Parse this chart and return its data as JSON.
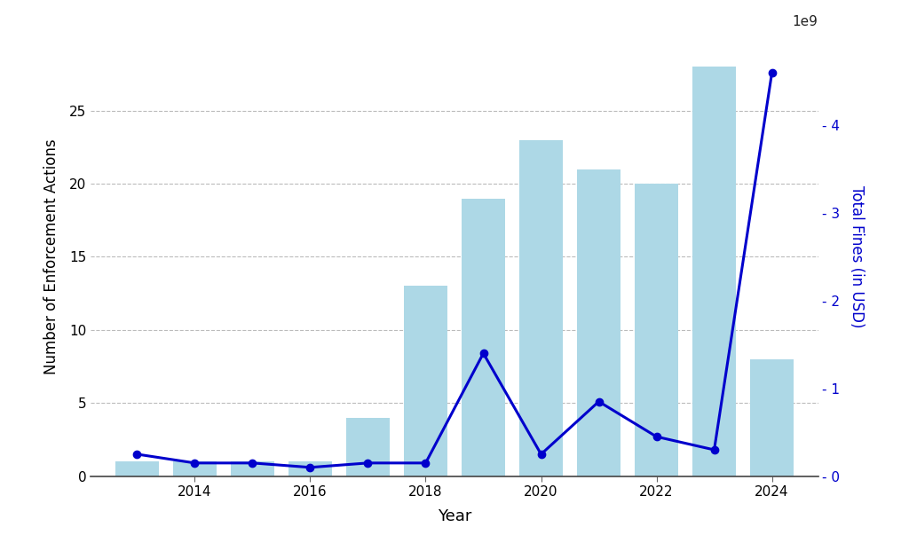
{
  "years": [
    2013,
    2014,
    2015,
    2016,
    2017,
    2018,
    2019,
    2020,
    2021,
    2022,
    2023,
    2024
  ],
  "enforcement_actions": [
    1,
    1,
    1,
    1,
    4,
    13,
    19,
    23,
    21,
    20,
    28,
    8
  ],
  "total_fines_usd": [
    250000000,
    150000000,
    150000000,
    100000000,
    150000000,
    150000000,
    1400000000,
    250000000,
    850000000,
    450000000,
    300000000,
    4600000000
  ],
  "bar_color": "#add8e6",
  "line_color": "#0000cc",
  "background_color": "#ffffff",
  "ylabel_left": "Number of Enforcement Actions",
  "ylabel_right": "Total Fines (in USD)",
  "xlabel": "Year",
  "grid_color": "#bbbbbb",
  "ylim_left": [
    0,
    30
  ],
  "ylim_right": [
    0,
    5000000000.0
  ],
  "xticks": [
    2014,
    2016,
    2018,
    2020,
    2022,
    2024
  ],
  "yticks_left": [
    0,
    5,
    10,
    15,
    20,
    25
  ],
  "yticks_right": [
    0,
    1000000000.0,
    2000000000.0,
    3000000000.0,
    4000000000.0
  ],
  "bar_width": 0.75,
  "xlim": [
    2012.2,
    2024.8
  ]
}
